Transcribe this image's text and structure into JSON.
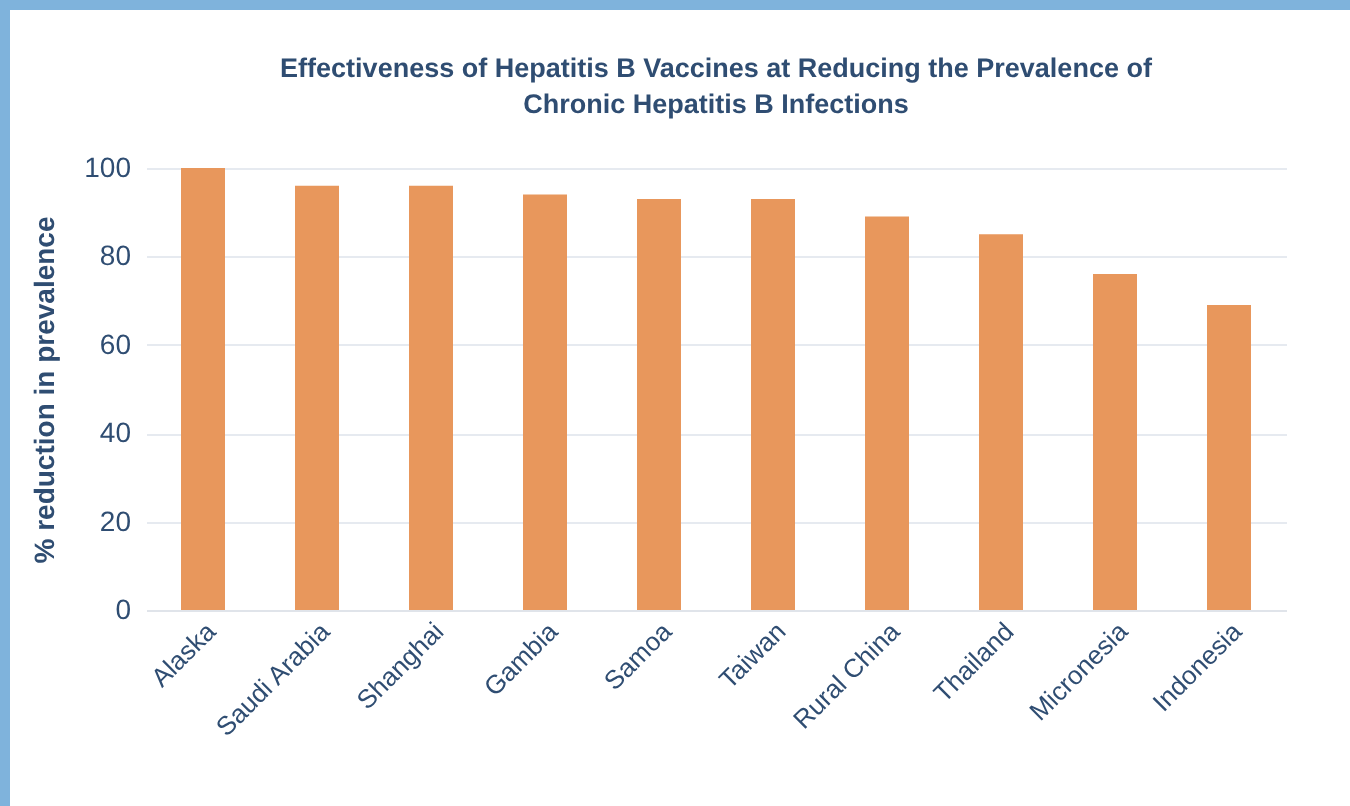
{
  "chart_data": {
    "type": "bar",
    "title": "Effectiveness of Hepatitis B Vaccines at Reducing the Prevalence of Chronic Hepatitis B Infections",
    "ylabel": "% reduction in prevalence",
    "categories": [
      "Alaska",
      "Saudi Arabia",
      "Shanghai",
      "Gambia",
      "Samoa",
      "Taiwan",
      "Rural China",
      "Thailand",
      "Micronesia",
      "Indonesia"
    ],
    "values": [
      100,
      96,
      96,
      94,
      93,
      93,
      89,
      85,
      76,
      69
    ],
    "color": "#e8975c",
    "ylim": [
      0,
      100
    ],
    "yticks": [
      0,
      20,
      40,
      60,
      80,
      100
    ],
    "grid": "y"
  }
}
